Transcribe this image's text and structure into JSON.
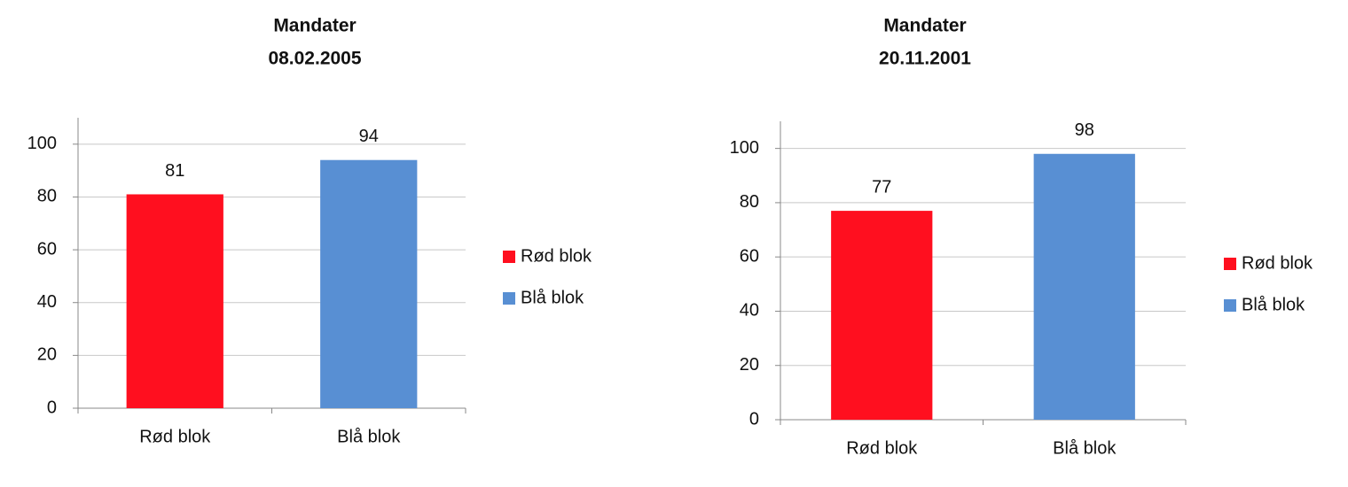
{
  "chart_data": [
    {
      "type": "bar",
      "title": "Mandater",
      "subtitle": "08.02.2005",
      "categories": [
        "Rød blok",
        "Blå blok"
      ],
      "values": [
        81,
        94
      ],
      "colors": [
        "#ff0f1f",
        "#588fd3"
      ],
      "ylim": [
        0,
        110
      ],
      "yticks": [
        0,
        20,
        40,
        60,
        80,
        100
      ],
      "grid": true,
      "legend": "right"
    },
    {
      "type": "bar",
      "title": "Mandater",
      "subtitle": "20.11.2001",
      "categories": [
        "Rød blok",
        "Blå blok"
      ],
      "values": [
        77,
        98
      ],
      "colors": [
        "#ff0f1f",
        "#588fd3"
      ],
      "ylim": [
        0,
        110
      ],
      "yticks": [
        0,
        20,
        40,
        60,
        80,
        100
      ],
      "grid": true,
      "legend": "right"
    }
  ]
}
